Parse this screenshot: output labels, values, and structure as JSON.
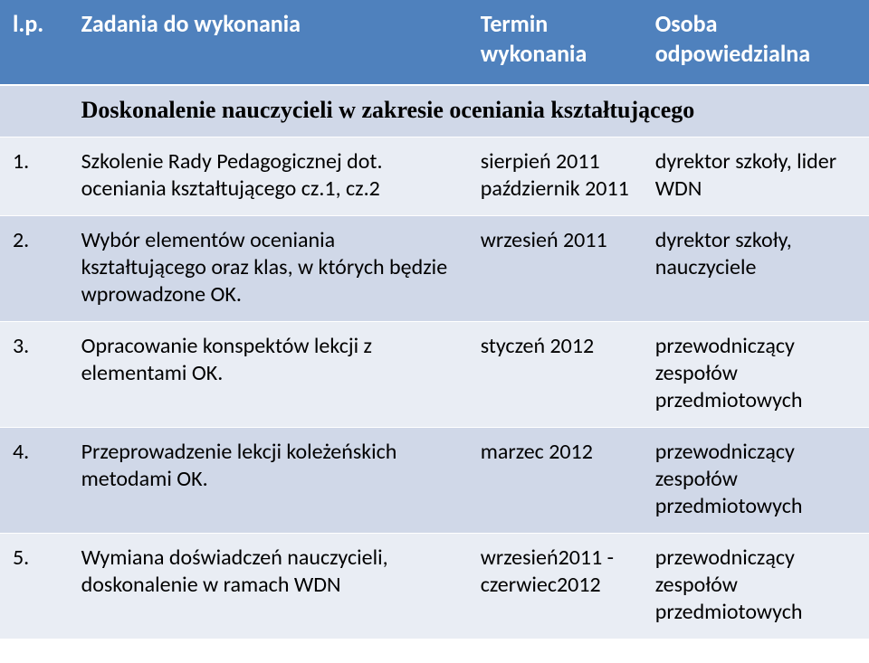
{
  "header": {
    "c1": "l.p.",
    "c2": "Zadania do wykonania",
    "c3": "Termin wykonania",
    "c4": "Osoba odpowiedzialna"
  },
  "section_title": "Doskonalenie nauczycieli w zakresie oceniania kształtującego",
  "rows": [
    {
      "num": "1.",
      "task": "Szkolenie Rady Pedagogicznej dot. oceniania kształtującego cz.1, cz.2",
      "term": "sierpień 2011 październik 2011",
      "who": "dyrektor szkoły, lider WDN"
    },
    {
      "num": "2.",
      "task": "Wybór elementów oceniania kształtującego oraz klas, w których będzie wprowadzone OK.",
      "term": "wrzesień 2011",
      "who": "dyrektor szkoły, nauczyciele"
    },
    {
      "num": "3.",
      "task": "Opracowanie konspektów lekcji z elementami OK.",
      "term": "styczeń 2012",
      "who": "przewodniczący zespołów przedmiotowych"
    },
    {
      "num": "4.",
      "task": "Przeprowadzenie lekcji koleżeńskich metodami OK.",
      "term": "marzec 2012",
      "who": "przewodniczący zespołów przedmiotowych"
    },
    {
      "num": "5.",
      "task": "Wymiana doświadczeń nauczycieli, doskonalenie w ramach WDN",
      "term": "wrzesień2011 - czerwiec2012",
      "who": "przewodniczący zespołów przedmiotowych"
    }
  ],
  "colors": {
    "header_bg": "#4f81bd",
    "header_text": "#ffffff",
    "band_a": "#e9edf4",
    "band_b": "#d0d8e8",
    "body_text": "#000000"
  },
  "fontsizes": {
    "header": 26,
    "section": 26,
    "body": 24
  }
}
